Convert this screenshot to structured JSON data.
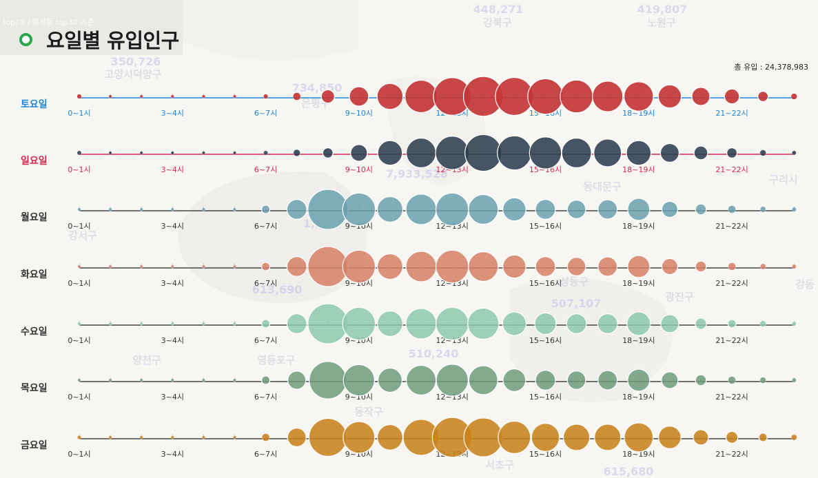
{
  "breadcrumb": "top10 / 행정동 top30 기준",
  "title": "요일별 유입인구",
  "total_label": "총 유입 : 24,378,983",
  "background_map": {
    "labels": [
      "강북구",
      "노원구",
      "고양시덕양구",
      "은평구",
      "동대문구",
      "구리시",
      "강서구",
      "성동구",
      "광진구",
      "양천구",
      "영등포구",
      "동작구",
      "서초구",
      "강동"
    ],
    "numbers": [
      "448,271",
      "419,807",
      "350,726",
      "734,850",
      "7,933,528",
      "1,1",
      "613,690",
      "507,107",
      "510,240",
      "615,680"
    ]
  },
  "chart_data": {
    "type": "bubble",
    "x_tick_labels": [
      "0~1시",
      "3~4시",
      "6~7시",
      "9~10시",
      "12~13시",
      "15~16시",
      "18~19시",
      "21~22시"
    ],
    "hours": [
      "0~1시",
      "1~2시",
      "2~3시",
      "3~4시",
      "4~5시",
      "5~6시",
      "6~7시",
      "7~8시",
      "8~9시",
      "9~10시",
      "10~11시",
      "11~12시",
      "12~13시",
      "13~14시",
      "14~15시",
      "15~16시",
      "16~17시",
      "17~18시",
      "18~19시",
      "19~20시",
      "20~21시",
      "21~22시",
      "22~23시",
      "23~24시"
    ],
    "size_scale": "relative inflow (bubble area)",
    "series": [
      {
        "name": "토요일",
        "label_color": "#1c86d8",
        "bubble_color": "#c43638",
        "line_color": "#1c86d8",
        "tick_color": "#1c86d8",
        "values": [
          9,
          2,
          1,
          1,
          1,
          1,
          9,
          25,
          75,
          160,
          290,
          450,
          610,
          680,
          620,
          540,
          460,
          400,
          370,
          230,
          140,
          95,
          45,
          16
        ]
      },
      {
        "name": "일요일",
        "label_color": "#d8264e",
        "bubble_color": "#2f3e4e",
        "line_color": "#d8264e",
        "tick_color": "#d8264e",
        "values": [
          8,
          2,
          1,
          1,
          1,
          1,
          8,
          20,
          45,
          120,
          260,
          380,
          480,
          580,
          500,
          440,
          380,
          330,
          260,
          150,
          80,
          45,
          16,
          8
        ]
      },
      {
        "name": "월요일",
        "label_color": "#333333",
        "bubble_color": "#6aa0ae",
        "line_color": "#444444",
        "tick_color": "#333333",
        "values": [
          2,
          1,
          1,
          1,
          1,
          3,
          30,
          170,
          690,
          460,
          280,
          400,
          460,
          380,
          230,
          170,
          145,
          160,
          210,
          110,
          50,
          25,
          14,
          8
        ]
      },
      {
        "name": "화요일",
        "label_color": "#333333",
        "bubble_color": "#d77f66",
        "line_color": "#444444",
        "tick_color": "#333333",
        "values": [
          2,
          1,
          1,
          1,
          1,
          3,
          30,
          170,
          690,
          460,
          280,
          400,
          460,
          380,
          230,
          170,
          145,
          160,
          210,
          110,
          50,
          25,
          14,
          8
        ]
      },
      {
        "name": "수요일",
        "label_color": "#333333",
        "bubble_color": "#8ec8ad",
        "line_color": "#444444",
        "tick_color": "#333333",
        "values": [
          2,
          1,
          1,
          1,
          1,
          3,
          30,
          170,
          690,
          460,
          280,
          400,
          460,
          420,
          240,
          200,
          170,
          170,
          240,
          140,
          55,
          30,
          16,
          8
        ]
      },
      {
        "name": "목요일",
        "label_color": "#333333",
        "bubble_color": "#6e9b7d",
        "line_color": "#444444",
        "tick_color": "#333333",
        "values": [
          2,
          1,
          1,
          1,
          1,
          3,
          30,
          140,
          600,
          420,
          250,
          380,
          440,
          360,
          220,
          170,
          145,
          160,
          210,
          120,
          50,
          25,
          16,
          8
        ]
      },
      {
        "name": "금요일",
        "label_color": "#333333",
        "bubble_color": "#c9831d",
        "line_color": "#444444",
        "tick_color": "#333333",
        "values": [
          6,
          2,
          1,
          1,
          1,
          3,
          25,
          150,
          620,
          430,
          280,
          560,
          680,
          650,
          450,
          340,
          300,
          300,
          360,
          220,
          100,
          60,
          30,
          14
        ]
      }
    ]
  }
}
